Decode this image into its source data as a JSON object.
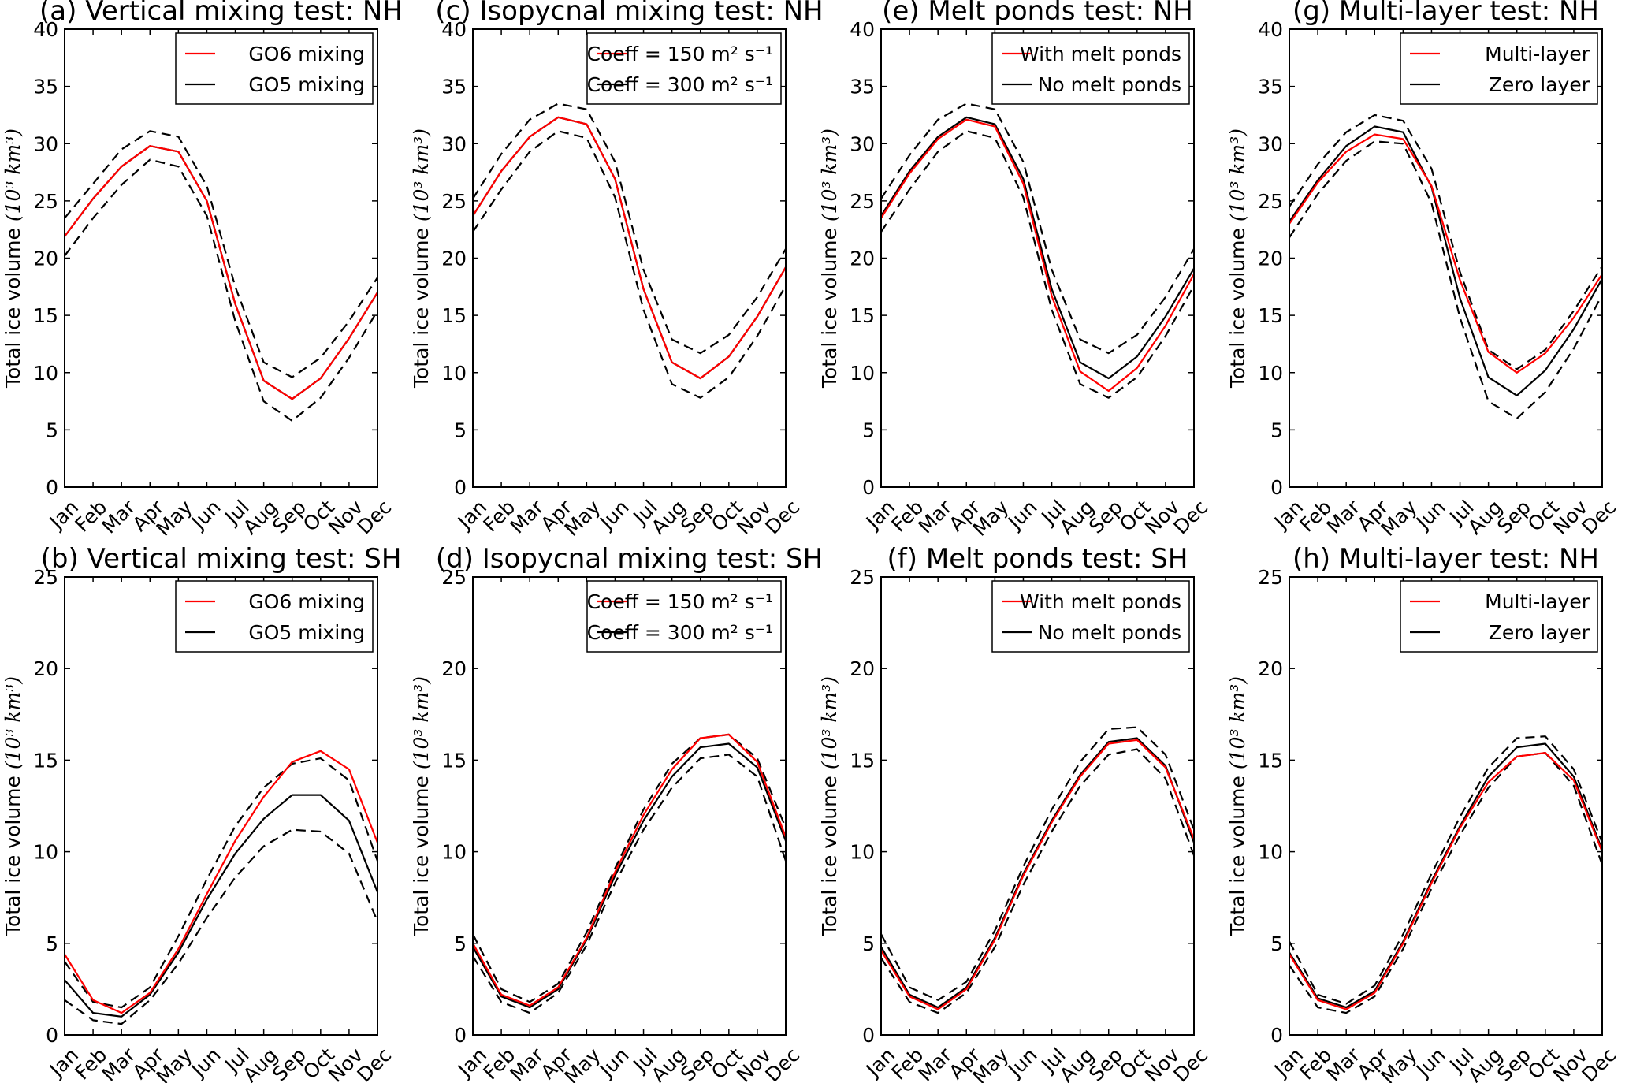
{
  "chart_data": [
    {
      "id": "a",
      "type": "line",
      "title": "(a) Vertical mixing test: NH",
      "ylabel": "Total ice volume",
      "ylabel_unit": "(10³ km³)",
      "ylim": [
        0,
        40
      ],
      "yticks": [
        0,
        5,
        10,
        15,
        20,
        25,
        30,
        35,
        40
      ],
      "x": [
        "Jan",
        "Feb",
        "Mar",
        "Apr",
        "May",
        "Jun",
        "Jul",
        "Aug",
        "Sep",
        "Oct",
        "Nov",
        "Dec"
      ],
      "legend_position": "upper-right",
      "series": [
        {
          "name": "GO6 mixing",
          "color": "#ff0000",
          "style": "solid",
          "values": [
            21.9,
            25.2,
            28.0,
            29.8,
            29.3,
            25.0,
            16.0,
            9.3,
            7.7,
            9.5,
            13.0,
            17.0
          ]
        },
        {
          "name": "GO5 mixing",
          "color": "#000000",
          "style": "solid",
          "values": [
            21.9,
            25.2,
            28.0,
            29.8,
            29.3,
            25.0,
            16.0,
            9.3,
            7.7,
            9.5,
            13.0,
            17.0
          ]
        },
        {
          "color": "#000000",
          "style": "dashed",
          "values": [
            23.5,
            26.5,
            29.5,
            31.1,
            30.6,
            26.3,
            17.5,
            10.9,
            9.6,
            11.3,
            14.5,
            18.3
          ]
        },
        {
          "color": "#000000",
          "style": "dashed",
          "values": [
            20.2,
            23.5,
            26.4,
            28.6,
            28.0,
            23.7,
            14.5,
            7.5,
            5.8,
            7.8,
            11.3,
            15.4
          ]
        }
      ]
    },
    {
      "id": "c",
      "type": "line",
      "title": "(c) Isopycnal mixing test: NH",
      "ylabel": "Total ice volume",
      "ylabel_unit": "(10³ km³)",
      "ylim": [
        0,
        40
      ],
      "yticks": [
        0,
        5,
        10,
        15,
        20,
        25,
        30,
        35,
        40
      ],
      "x": [
        "Jan",
        "Feb",
        "Mar",
        "Apr",
        "May",
        "Jun",
        "Jul",
        "Aug",
        "Sep",
        "Oct",
        "Nov",
        "Dec"
      ],
      "legend_position": "upper-right",
      "series": [
        {
          "name": "Coeff = 150 m² s⁻¹",
          "color": "#ff0000",
          "style": "solid",
          "values": [
            23.7,
            27.6,
            30.6,
            32.3,
            31.7,
            26.9,
            17.3,
            10.9,
            9.5,
            11.4,
            14.9,
            19.2
          ]
        },
        {
          "name": "Coeff = 300 m² s⁻¹",
          "color": "#000000",
          "style": "solid",
          "values": [
            23.7,
            27.6,
            30.6,
            32.3,
            31.7,
            26.9,
            17.3,
            10.9,
            9.5,
            11.4,
            14.9,
            19.2
          ]
        },
        {
          "color": "#000000",
          "style": "dashed",
          "values": [
            25.2,
            29.1,
            32.1,
            33.5,
            33.0,
            28.4,
            19.0,
            12.9,
            11.7,
            13.3,
            16.6,
            20.8
          ]
        },
        {
          "color": "#000000",
          "style": "dashed",
          "values": [
            22.3,
            26.0,
            29.3,
            31.1,
            30.5,
            25.3,
            15.5,
            9.0,
            7.8,
            9.6,
            13.2,
            17.6
          ]
        }
      ]
    },
    {
      "id": "e",
      "type": "line",
      "title": "(e) Melt ponds test: NH",
      "ylabel": "Total ice volume",
      "ylabel_unit": "(10³ km³)",
      "ylim": [
        0,
        40
      ],
      "yticks": [
        0,
        5,
        10,
        15,
        20,
        25,
        30,
        35,
        40
      ],
      "x": [
        "Jan",
        "Feb",
        "Mar",
        "Apr",
        "May",
        "Jun",
        "Jul",
        "Aug",
        "Sep",
        "Oct",
        "Nov",
        "Dec"
      ],
      "legend_position": "upper-right",
      "series": [
        {
          "name": "With melt ponds",
          "color": "#ff0000",
          "style": "solid",
          "values": [
            23.5,
            27.4,
            30.4,
            32.1,
            31.5,
            26.5,
            16.7,
            10.1,
            8.4,
            10.4,
            14.1,
            18.6
          ]
        },
        {
          "name": "No melt ponds",
          "color": "#000000",
          "style": "solid",
          "values": [
            23.7,
            27.6,
            30.6,
            32.3,
            31.7,
            26.9,
            17.3,
            10.9,
            9.5,
            11.4,
            14.9,
            19.1
          ]
        },
        {
          "color": "#000000",
          "style": "dashed",
          "values": [
            25.2,
            29.0,
            32.1,
            33.5,
            33.0,
            28.4,
            19.0,
            12.9,
            11.7,
            13.3,
            16.6,
            20.8
          ]
        },
        {
          "color": "#000000",
          "style": "dashed",
          "values": [
            22.3,
            26.0,
            29.3,
            31.1,
            30.5,
            25.3,
            15.5,
            9.0,
            7.8,
            9.6,
            13.2,
            17.6
          ]
        }
      ]
    },
    {
      "id": "g",
      "type": "line",
      "title": "(g) Multi-layer test: NH",
      "ylabel": "Total ice volume",
      "ylabel_unit": "(10³ km³)",
      "ylim": [
        0,
        40
      ],
      "yticks": [
        0,
        5,
        10,
        15,
        20,
        25,
        30,
        35,
        40
      ],
      "x": [
        "Jan",
        "Feb",
        "Mar",
        "Apr",
        "May",
        "Jun",
        "Jul",
        "Aug",
        "Sep",
        "Oct",
        "Nov",
        "Dec"
      ],
      "legend_position": "upper-right",
      "series": [
        {
          "name": "Multi-layer",
          "color": "#ff0000",
          "style": "solid",
          "values": [
            23.0,
            26.6,
            29.3,
            30.8,
            30.4,
            26.3,
            18.1,
            11.8,
            10.0,
            11.7,
            14.8,
            18.6
          ]
        },
        {
          "name": "Zero layer",
          "color": "#000000",
          "style": "solid",
          "values": [
            23.2,
            26.8,
            29.8,
            31.5,
            31.0,
            26.2,
            16.5,
            9.6,
            8.0,
            10.2,
            13.8,
            18.2
          ]
        },
        {
          "color": "#000000",
          "style": "dashed",
          "values": [
            24.5,
            28.2,
            31.0,
            32.5,
            32.0,
            27.8,
            18.8,
            12.0,
            10.3,
            12.0,
            15.4,
            19.3
          ]
        },
        {
          "color": "#000000",
          "style": "dashed",
          "values": [
            21.8,
            25.6,
            28.5,
            30.2,
            30.0,
            24.8,
            14.8,
            7.5,
            6.0,
            8.3,
            12.1,
            16.8
          ]
        }
      ]
    },
    {
      "id": "b",
      "type": "line",
      "title": "(b) Vertical mixing test: SH",
      "ylabel": "Total ice volume",
      "ylabel_unit": "(10³ km³)",
      "ylim": [
        0,
        25
      ],
      "yticks": [
        0,
        5,
        10,
        15,
        20,
        25
      ],
      "x": [
        "Jan",
        "Feb",
        "Mar",
        "Apr",
        "May",
        "Jun",
        "Jul",
        "Aug",
        "Sep",
        "Oct",
        "Nov",
        "Dec"
      ],
      "legend_position": "upper-right",
      "series": [
        {
          "name": "GO6 mixing",
          "color": "#ff0000",
          "style": "solid",
          "values": [
            4.4,
            1.9,
            1.2,
            2.3,
            4.7,
            7.7,
            10.6,
            13.0,
            14.9,
            15.5,
            14.5,
            10.5
          ]
        },
        {
          "name": "GO5 mixing",
          "color": "#000000",
          "style": "solid",
          "values": [
            3.0,
            1.2,
            1.0,
            2.2,
            4.5,
            7.4,
            9.9,
            11.8,
            13.1,
            13.1,
            11.7,
            7.8
          ]
        },
        {
          "color": "#000000",
          "style": "dashed",
          "values": [
            4.0,
            1.8,
            1.5,
            2.6,
            5.4,
            8.5,
            11.4,
            13.5,
            14.8,
            15.1,
            13.9,
            9.5
          ]
        },
        {
          "color": "#000000",
          "style": "dashed",
          "values": [
            1.9,
            0.8,
            0.6,
            1.9,
            3.9,
            6.4,
            8.6,
            10.3,
            11.2,
            11.1,
            9.9,
            6.2
          ]
        }
      ]
    },
    {
      "id": "d",
      "type": "line",
      "title": "(d) Isopycnal mixing test: SH",
      "ylabel": "Total ice volume",
      "ylabel_unit": "(10³ km³)",
      "ylim": [
        0,
        25
      ],
      "yticks": [
        0,
        5,
        10,
        15,
        20,
        25
      ],
      "x": [
        "Jan",
        "Feb",
        "Mar",
        "Apr",
        "May",
        "Jun",
        "Jul",
        "Aug",
        "Sep",
        "Oct",
        "Nov",
        "Dec"
      ],
      "legend_position": "upper-right",
      "series": [
        {
          "name": "Coeff = 150 m² s⁻¹",
          "color": "#ff0000",
          "style": "solid",
          "values": [
            5.0,
            2.2,
            1.6,
            2.6,
            5.3,
            8.9,
            12.0,
            14.5,
            16.2,
            16.4,
            14.9,
            10.8
          ]
        },
        {
          "name": "Coeff = 300 m² s⁻¹",
          "color": "#000000",
          "style": "solid",
          "values": [
            4.8,
            2.1,
            1.5,
            2.5,
            5.2,
            8.7,
            11.7,
            14.1,
            15.7,
            15.9,
            14.6,
            10.6
          ]
        },
        {
          "color": "#000000",
          "style": "dashed",
          "values": [
            5.5,
            2.5,
            1.8,
            2.8,
            5.6,
            9.1,
            12.3,
            14.8,
            16.2,
            16.4,
            15.1,
            11.3
          ]
        },
        {
          "color": "#000000",
          "style": "dashed",
          "values": [
            4.3,
            1.8,
            1.2,
            2.3,
            4.9,
            8.3,
            11.2,
            13.5,
            15.1,
            15.3,
            14.1,
            9.5
          ]
        }
      ]
    },
    {
      "id": "f",
      "type": "line",
      "title": "(f) Melt ponds test: SH",
      "ylabel": "Total ice volume",
      "ylabel_unit": "(10³ km³)",
      "ylim": [
        0,
        25
      ],
      "yticks": [
        0,
        5,
        10,
        15,
        20,
        25
      ],
      "x": [
        "Jan",
        "Feb",
        "Mar",
        "Apr",
        "May",
        "Jun",
        "Jul",
        "Aug",
        "Sep",
        "Oct",
        "Nov",
        "Dec"
      ],
      "legend_position": "upper-right",
      "series": [
        {
          "name": "With melt ponds",
          "color": "#ff0000",
          "style": "solid",
          "values": [
            4.6,
            2.1,
            1.4,
            2.5,
            5.2,
            8.7,
            11.6,
            14.1,
            15.9,
            16.1,
            14.6,
            10.7
          ]
        },
        {
          "name": "No melt ponds",
          "color": "#000000",
          "style": "solid",
          "values": [
            4.8,
            2.2,
            1.5,
            2.6,
            5.3,
            8.8,
            11.7,
            14.2,
            16.0,
            16.2,
            14.7,
            10.5
          ]
        },
        {
          "color": "#000000",
          "style": "dashed",
          "values": [
            5.5,
            2.6,
            1.9,
            2.9,
            5.7,
            9.2,
            12.3,
            14.9,
            16.7,
            16.8,
            15.3,
            11.2
          ]
        },
        {
          "color": "#000000",
          "style": "dashed",
          "values": [
            4.2,
            1.8,
            1.2,
            2.3,
            4.8,
            8.2,
            11.1,
            13.6,
            15.3,
            15.6,
            14.0,
            9.8
          ]
        }
      ]
    },
    {
      "id": "h",
      "type": "line",
      "title": "(h) Multi-layer test: NH",
      "ylabel": "Total ice volume",
      "ylabel_unit": "(10³ km³)",
      "ylim": [
        0,
        25
      ],
      "yticks": [
        0,
        5,
        10,
        15,
        20,
        25
      ],
      "x": [
        "Jan",
        "Feb",
        "Mar",
        "Apr",
        "May",
        "Jun",
        "Jul",
        "Aug",
        "Sep",
        "Oct",
        "Nov",
        "Dec"
      ],
      "legend_position": "upper-right",
      "series": [
        {
          "name": "Multi-layer",
          "color": "#ff0000",
          "style": "solid",
          "values": [
            4.4,
            1.9,
            1.4,
            2.3,
            5.0,
            8.3,
            11.3,
            13.8,
            15.2,
            15.4,
            13.9,
            10.0
          ]
        },
        {
          "name": "Zero layer",
          "color": "#000000",
          "style": "solid",
          "values": [
            4.5,
            2.0,
            1.5,
            2.4,
            5.1,
            8.4,
            11.4,
            14.1,
            15.7,
            15.9,
            14.1,
            10.1
          ]
        },
        {
          "color": "#000000",
          "style": "dashed",
          "values": [
            5.1,
            2.2,
            1.7,
            2.7,
            5.5,
            8.8,
            11.9,
            14.6,
            16.2,
            16.3,
            14.5,
            10.5
          ]
        },
        {
          "color": "#000000",
          "style": "dashed",
          "values": [
            3.8,
            1.5,
            1.2,
            2.1,
            4.7,
            8.0,
            10.9,
            13.5,
            15.2,
            15.4,
            13.6,
            9.3
          ]
        }
      ]
    }
  ]
}
